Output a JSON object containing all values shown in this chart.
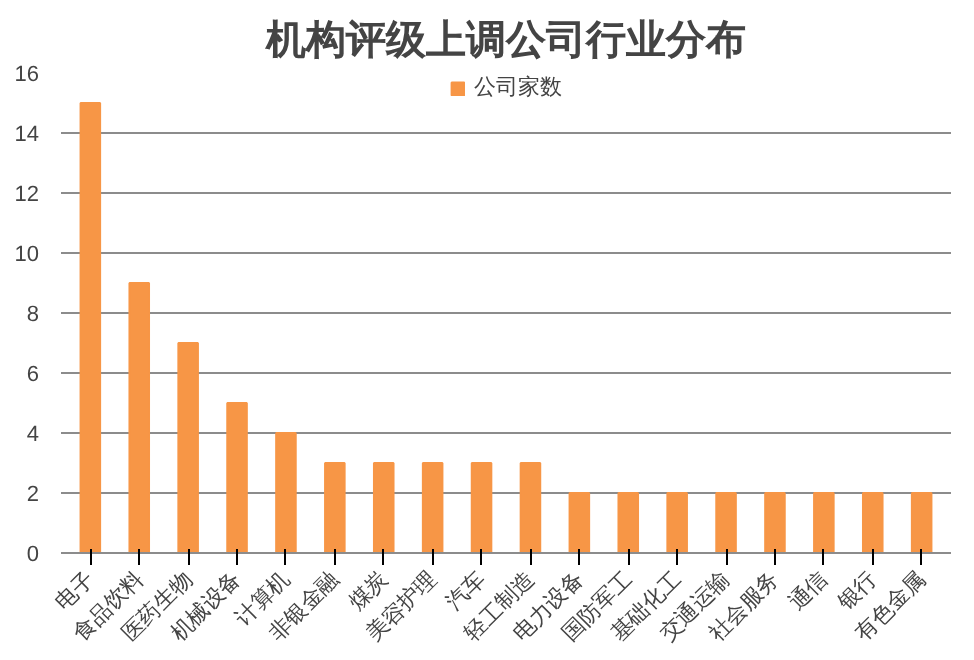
{
  "chart_data": {
    "type": "bar",
    "title": "机构评级上调公司行业分布",
    "categories": [
      "电子",
      "食品饮料",
      "医药生物",
      "机械设备",
      "计算机",
      "非银金融",
      "煤炭",
      "美容护理",
      "汽车",
      "轻工制造",
      "电力设备",
      "国防军工",
      "基础化工",
      "交通运输",
      "社会服务",
      "通信",
      "银行",
      "有色金属"
    ],
    "series": [
      {
        "name": "公司家数",
        "color": "#f79646",
        "values": [
          15,
          9,
          7,
          5,
          4,
          3,
          3,
          3,
          3,
          3,
          2,
          2,
          2,
          2,
          2,
          2,
          2,
          2
        ]
      }
    ],
    "ylim": [
      0,
      16
    ],
    "yticks": [
      0,
      2,
      4,
      6,
      8,
      10,
      12,
      14,
      16
    ],
    "grid": "y",
    "legend": "top"
  }
}
